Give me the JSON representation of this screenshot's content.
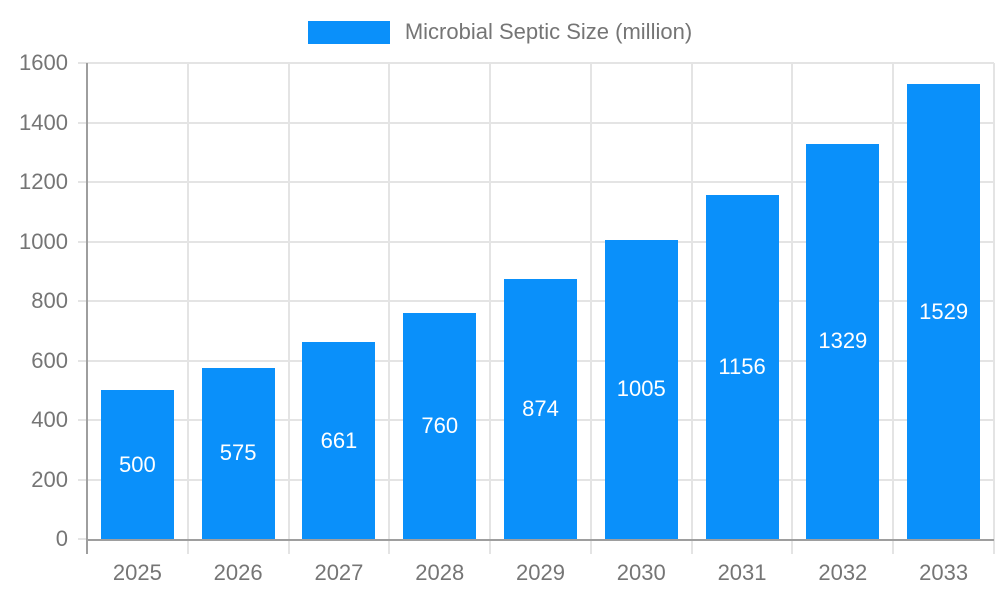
{
  "chart_data": {
    "type": "bar",
    "title": "Microbial Septic Size (million)",
    "legend_position": "top",
    "categories": [
      "2025",
      "2026",
      "2027",
      "2028",
      "2029",
      "2030",
      "2031",
      "2032",
      "2033"
    ],
    "series": [
      {
        "name": "Microbial Septic Size (million)",
        "values": [
          500,
          575,
          661,
          760,
          874,
          1005,
          1156,
          1329,
          1529
        ]
      }
    ],
    "xlabel": "",
    "ylabel": "",
    "ylim": [
      0,
      1600
    ],
    "ytick_step": 200,
    "ytick_labels": [
      "0",
      "200",
      "400",
      "600",
      "800",
      "1000",
      "1200",
      "1400",
      "1600"
    ],
    "grid": true,
    "value_label_position": "inside-center",
    "colors": {
      "bar": "#0a90fa",
      "value_label": "#ffffff",
      "axis_text": "#757575",
      "axis_line": "#9e9e9e",
      "gridline": "#e4e4e4",
      "background": "#ffffff"
    }
  }
}
